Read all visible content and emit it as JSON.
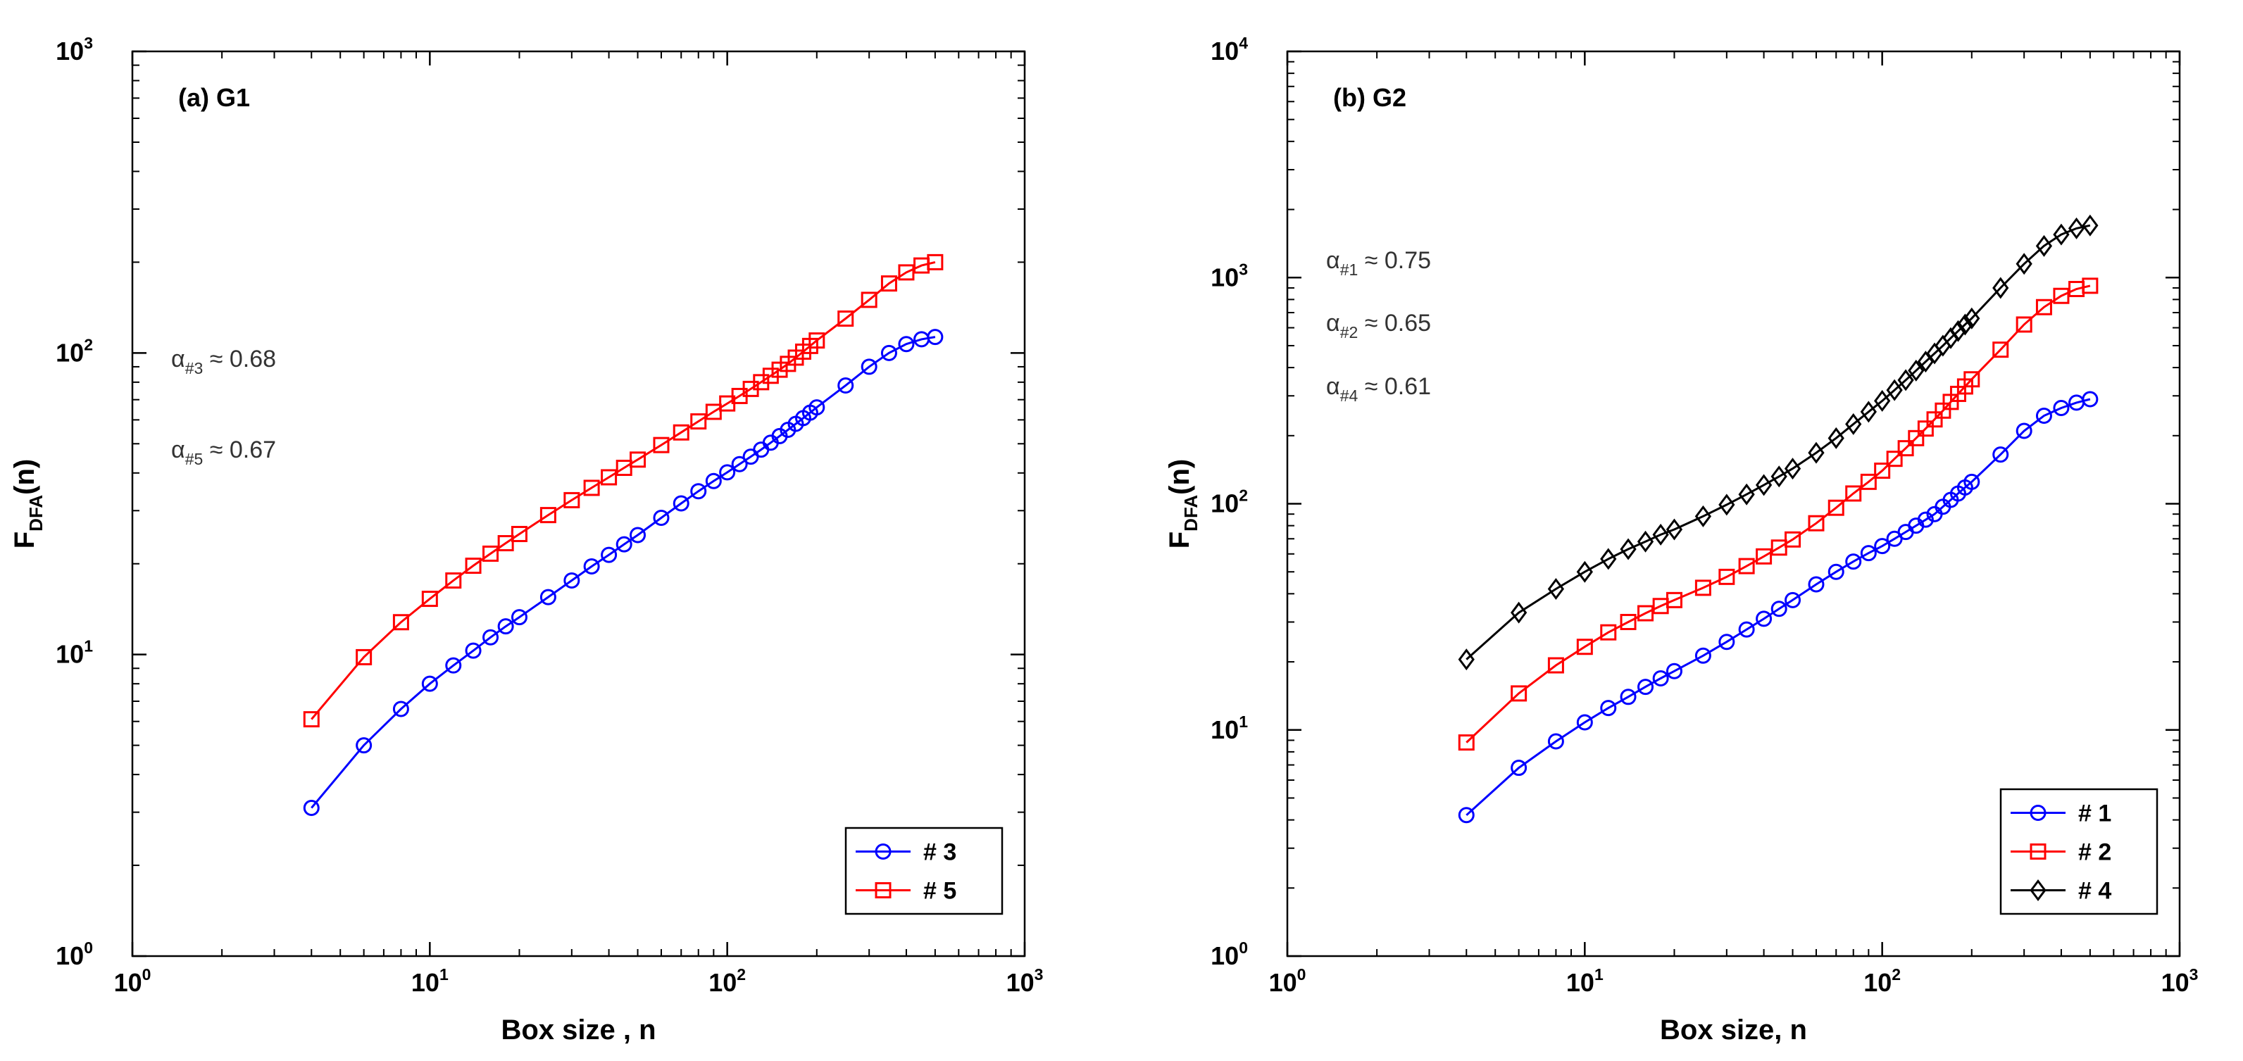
{
  "figure": {
    "colors": {
      "#1": "#0000ff",
      "#2": "#ff0000",
      "#3": "#0000ff",
      "#4": "#000000",
      "#5": "#ff0000"
    },
    "tick_base": "10"
  },
  "chart_data": [
    {
      "type": "line",
      "title": "(a) G1",
      "xlabel": "Box size , n",
      "ylabel": {
        "main": "F",
        "sub": "DFA",
        "suffix": "(n)"
      },
      "xscale": "log",
      "yscale": "log",
      "xlim": [
        1,
        1000
      ],
      "ylim": [
        1,
        1000
      ],
      "xtick_exponents": [
        "0",
        "1",
        "2",
        "3"
      ],
      "ytick_exponents": [
        "0",
        "1",
        "2",
        "3"
      ],
      "legend": {
        "position": "bottom-right",
        "entries": [
          "# 3",
          "# 5"
        ]
      },
      "annotations": [
        {
          "symbol": "α",
          "sub": "#3",
          "text": " ≈ 0.68",
          "x": 1.35,
          "y": 90
        },
        {
          "symbol": "α",
          "sub": "#5",
          "text": " ≈ 0.67",
          "x": 1.35,
          "y": 45
        }
      ],
      "x": [
        4,
        6,
        8,
        10,
        12,
        14,
        16,
        18,
        20,
        25,
        30,
        35,
        40,
        45,
        50,
        60,
        70,
        80,
        90,
        100,
        110,
        120,
        130,
        140,
        150,
        160,
        170,
        180,
        190,
        200,
        250,
        300,
        350,
        400,
        450,
        500
      ],
      "series": [
        {
          "name": "# 3",
          "color": "#0000ff",
          "marker": "circle",
          "values": [
            3.1,
            5.0,
            6.6,
            8.0,
            9.2,
            10.3,
            11.4,
            12.4,
            13.3,
            15.5,
            17.6,
            19.6,
            21.4,
            23.2,
            24.9,
            28.4,
            31.7,
            34.8,
            37.6,
            40.2,
            42.8,
            45.3,
            47.8,
            50.4,
            53.0,
            55.6,
            58.2,
            60.8,
            63.4,
            66.0,
            78.0,
            90.0,
            100.0,
            107.0,
            111.0,
            113.0
          ]
        },
        {
          "name": "# 5",
          "color": "#ff0000",
          "marker": "square",
          "values": [
            6.1,
            9.8,
            12.8,
            15.3,
            17.6,
            19.7,
            21.6,
            23.4,
            25.1,
            29.0,
            32.5,
            35.7,
            38.7,
            41.6,
            44.3,
            49.5,
            54.5,
            59.3,
            63.8,
            68.0,
            72.0,
            76.0,
            80.0,
            84.0,
            88.0,
            92.0,
            96.5,
            101.0,
            105.5,
            110.0,
            130.0,
            150.0,
            170.0,
            185.0,
            195.0,
            200.0
          ]
        }
      ]
    },
    {
      "type": "line",
      "title": "(b) G2",
      "xlabel": "Box size, n",
      "ylabel": {
        "main": "F",
        "sub": "DFA",
        "suffix": "(n)"
      },
      "xscale": "log",
      "yscale": "log",
      "xlim": [
        1,
        1000
      ],
      "ylim": [
        1,
        10000
      ],
      "xtick_exponents": [
        "0",
        "1",
        "2",
        "3"
      ],
      "ytick_exponents": [
        "0",
        "1",
        "2",
        "3",
        "4"
      ],
      "legend": {
        "position": "bottom-right",
        "entries": [
          "# 1",
          "# 2",
          "# 4"
        ]
      },
      "annotations": [
        {
          "symbol": "α",
          "sub": "#1",
          "text": " ≈ 0.75",
          "x": 1.35,
          "y": 1100
        },
        {
          "symbol": "α",
          "sub": "#2",
          "text": " ≈ 0.65",
          "x": 1.35,
          "y": 580
        },
        {
          "symbol": "α",
          "sub": "#4",
          "text": " ≈ 0.61",
          "x": 1.35,
          "y": 305
        }
      ],
      "x": [
        4,
        6,
        8,
        10,
        12,
        14,
        16,
        18,
        20,
        25,
        30,
        35,
        40,
        45,
        50,
        60,
        70,
        80,
        90,
        100,
        110,
        120,
        130,
        140,
        150,
        160,
        170,
        180,
        190,
        200,
        250,
        300,
        350,
        400,
        450,
        500
      ],
      "series": [
        {
          "name": "# 1",
          "color": "#0000ff",
          "marker": "circle",
          "values": [
            4.2,
            6.8,
            8.9,
            10.8,
            12.5,
            14.0,
            15.5,
            16.9,
            18.2,
            21.3,
            24.5,
            27.8,
            31.0,
            34.3,
            37.5,
            44.0,
            50.0,
            55.5,
            60.5,
            65.0,
            70.0,
            75.0,
            80.0,
            85.0,
            90.0,
            97.0,
            104.0,
            111.0,
            118.0,
            125.0,
            165.0,
            210.0,
            245.0,
            265.0,
            280.0,
            290.0
          ]
        },
        {
          "name": "# 2",
          "color": "#ff0000",
          "marker": "square",
          "values": [
            8.8,
            14.5,
            19.3,
            23.3,
            27.0,
            30.0,
            32.8,
            35.3,
            37.5,
            42.5,
            47.5,
            53.0,
            58.5,
            64.0,
            69.5,
            82.0,
            96.0,
            111.0,
            125.0,
            140.0,
            158.0,
            176.0,
            195.0,
            215.0,
            236.0,
            258.0,
            282.0,
            306.0,
            330.0,
            355.0,
            480.0,
            620.0,
            740.0,
            830.0,
            890.0,
            920.0
          ]
        },
        {
          "name": "# 4",
          "color": "#000000",
          "marker": "diamond",
          "values": [
            20.5,
            33.0,
            42.0,
            50.0,
            57.0,
            63.0,
            68.0,
            73.0,
            77.0,
            88.0,
            99.0,
            110.0,
            121.0,
            132.0,
            143.0,
            168.0,
            195.0,
            225.0,
            255.0,
            285.0,
            318.0,
            352.0,
            388.0,
            425.0,
            462.0,
            500.0,
            540.0,
            580.0,
            620.0,
            660.0,
            900.0,
            1150.0,
            1380.0,
            1550.0,
            1650.0,
            1700.0
          ]
        }
      ]
    }
  ]
}
